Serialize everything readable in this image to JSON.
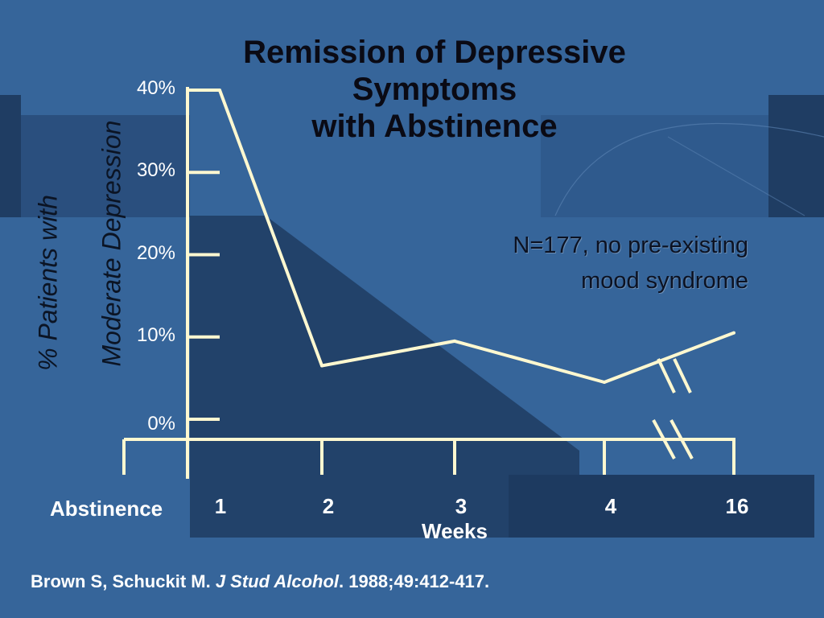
{
  "slide": {
    "title_lines": [
      "Remission of Depressive",
      "Symptoms",
      "with Abstinence"
    ],
    "note_lines": [
      "N=177, no pre-existing",
      "mood syndrome"
    ],
    "citation": {
      "authors": "Brown S, Schuckit M. ",
      "journal": "J Stud Alcohol",
      "rest": ". 1988;49:412-417."
    }
  },
  "chart_data": {
    "type": "line",
    "title": "Remission of Depressive Symptoms with Abstinence",
    "ylabel_lines": [
      "% Patients with",
      "Moderate Depression"
    ],
    "xlabel": "Weeks",
    "x_category_label": "Abstinence",
    "categories": [
      "1",
      "2",
      "3",
      "4",
      "16"
    ],
    "yticks": [
      "40%",
      "30%",
      "20%",
      "10%",
      "0%"
    ],
    "ylim": [
      0,
      40
    ],
    "y_axis_break": true,
    "x_axis_break_between": [
      "4",
      "16"
    ],
    "series": [
      {
        "values": [
          40,
          6.5,
          9.5,
          4.5,
          10.5
        ]
      }
    ],
    "colors": {
      "line": "#fff8d0",
      "background": "#36659a",
      "text_light": "#ffffff",
      "text_dark": "#0a0a14"
    }
  }
}
